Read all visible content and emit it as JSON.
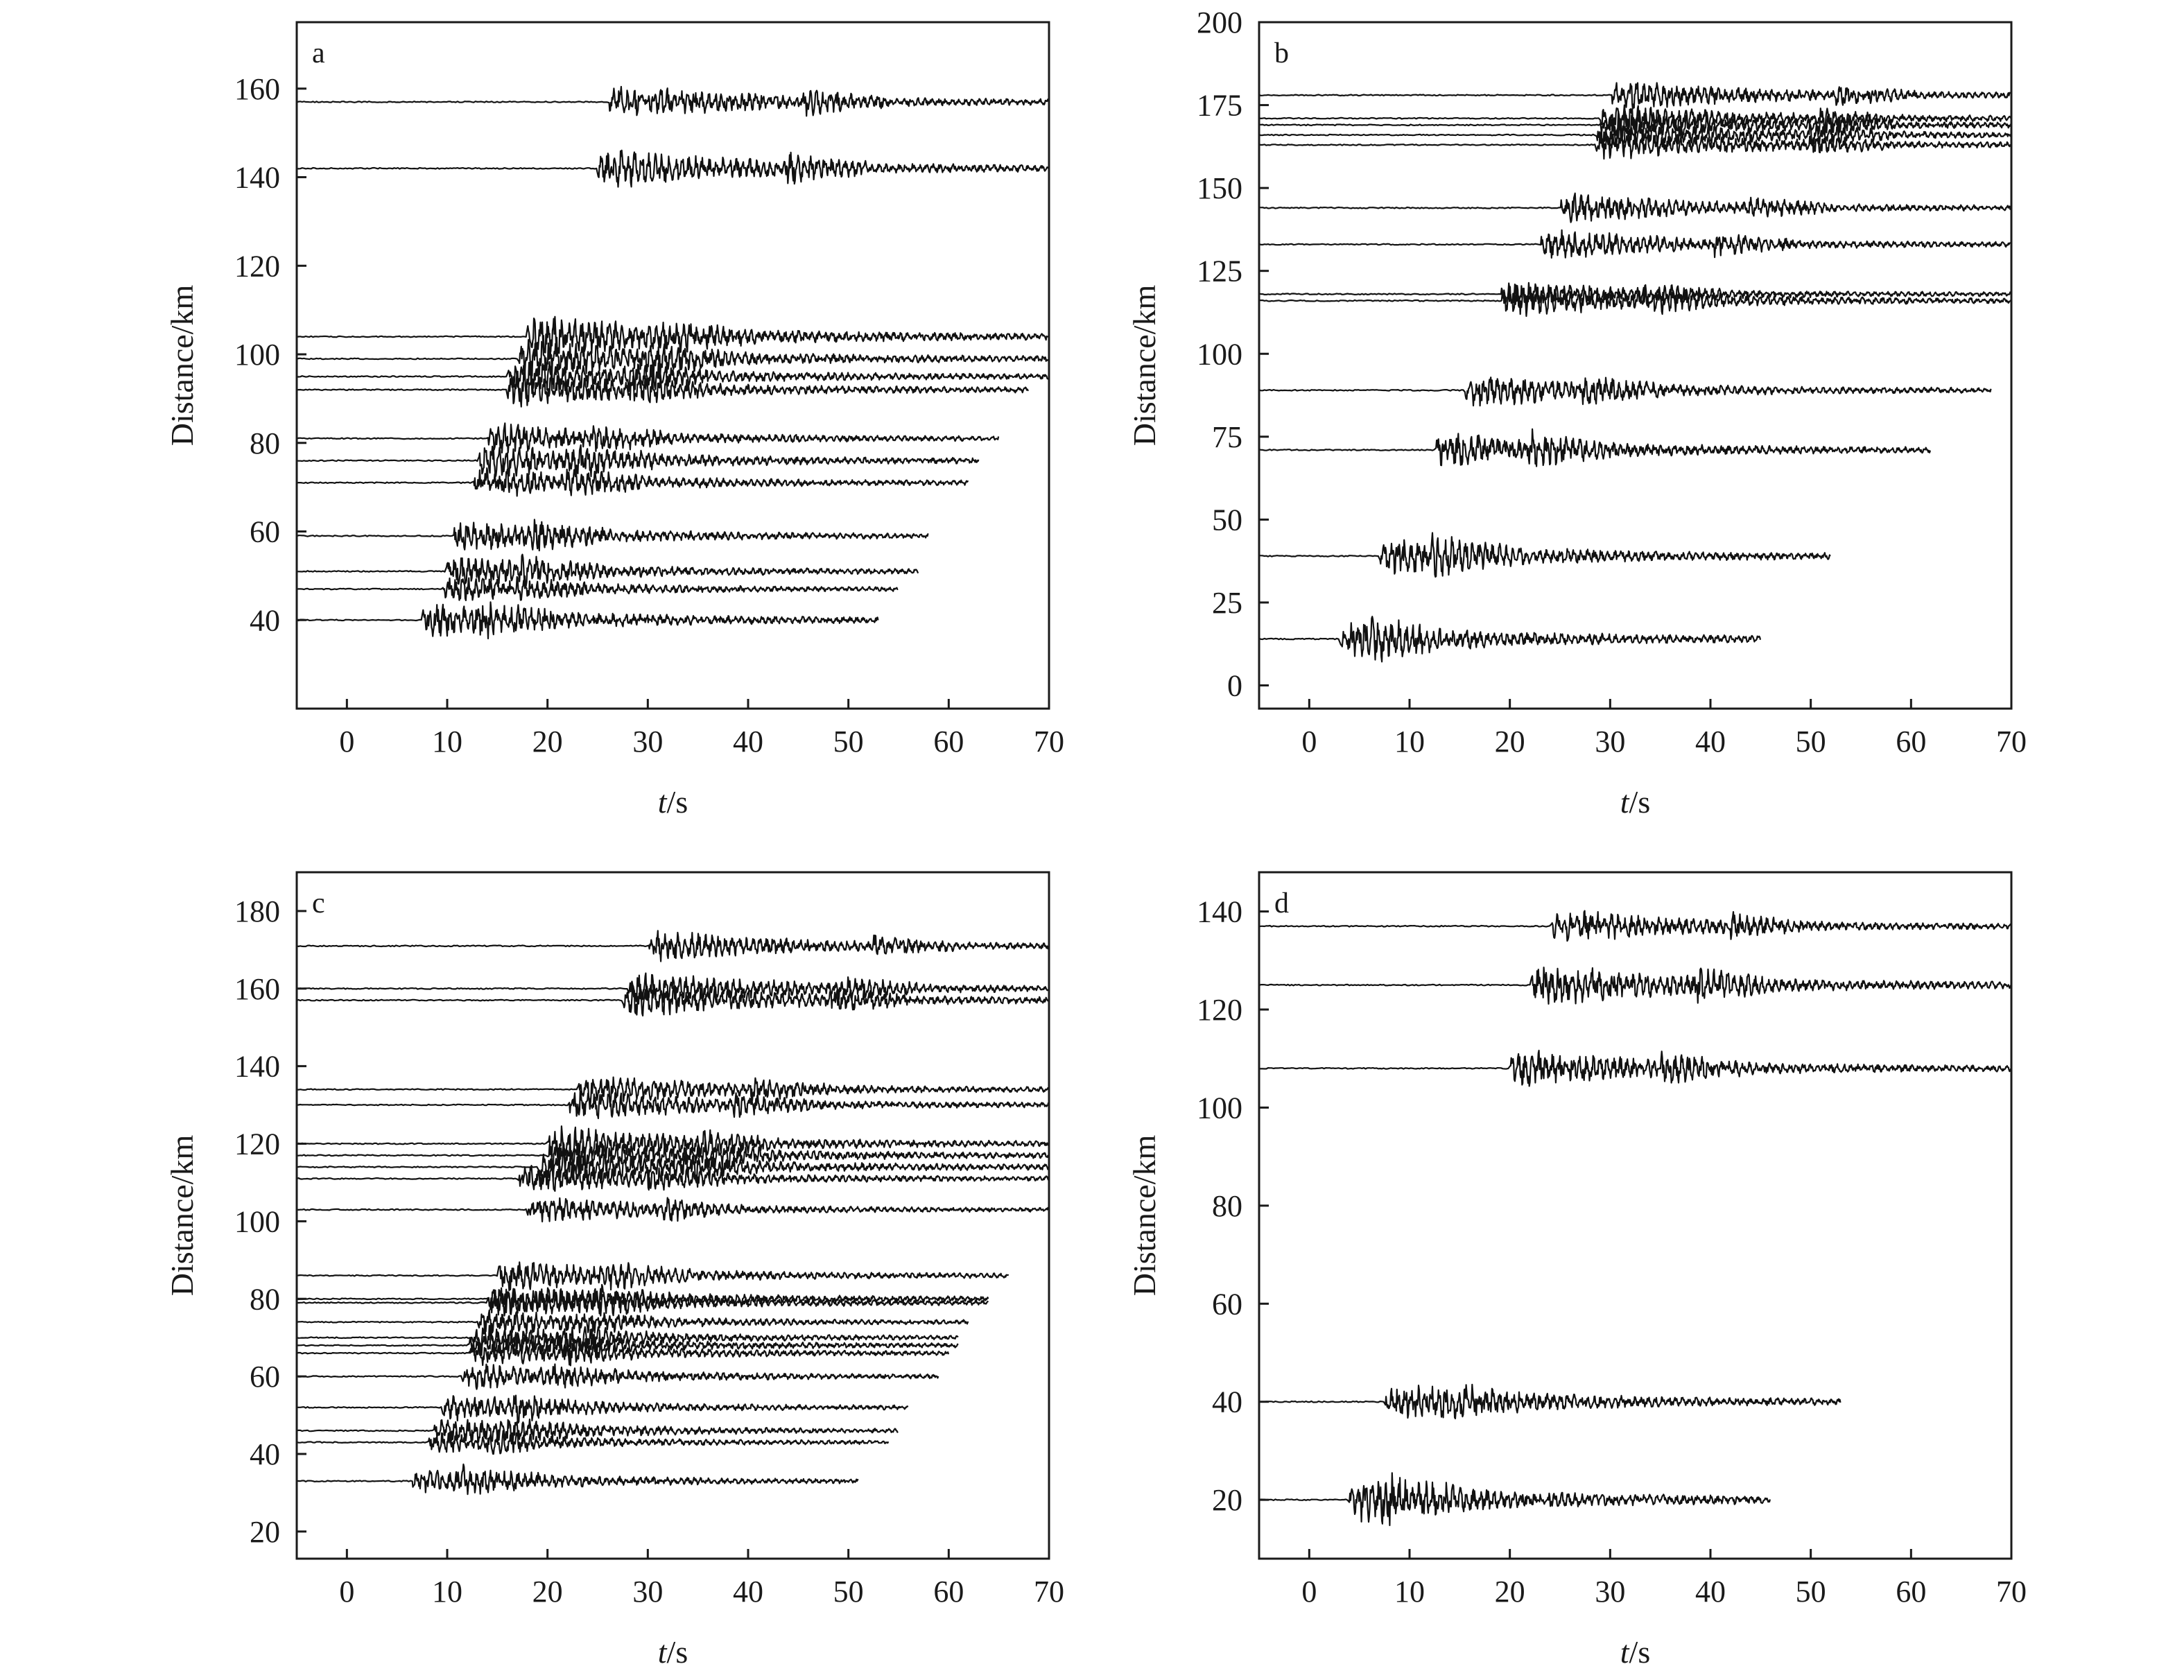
{
  "chart_data": [
    {
      "type": "line",
      "panel_label": "a",
      "xlabel_italic": "t",
      "xlabel_rest": "/s",
      "ylabel": "Distance/km",
      "xlim": [
        -5,
        70
      ],
      "ylim": [
        20,
        175
      ],
      "xticks": [
        0,
        10,
        20,
        30,
        40,
        50,
        60,
        70
      ],
      "yticks": [
        40,
        60,
        80,
        100,
        120,
        140,
        160
      ],
      "traces": [
        {
          "distance": 40,
          "onset": 7.5,
          "end": 53,
          "amp": 7
        },
        {
          "distance": 47,
          "onset": 9.5,
          "end": 55,
          "amp": 5
        },
        {
          "distance": 51,
          "onset": 9.8,
          "end": 57,
          "amp": 6
        },
        {
          "distance": 59,
          "onset": 10.5,
          "end": 58,
          "amp": 6
        },
        {
          "distance": 71,
          "onset": 12.5,
          "end": 62,
          "amp": 6
        },
        {
          "distance": 76,
          "onset": 13,
          "end": 63,
          "amp": 7
        },
        {
          "distance": 81,
          "onset": 14,
          "end": 65,
          "amp": 6
        },
        {
          "distance": 92,
          "onset": 16,
          "end": 68,
          "amp": 7
        },
        {
          "distance": 95,
          "onset": 16,
          "end": 70,
          "amp": 7
        },
        {
          "distance": 99,
          "onset": 17,
          "end": 70,
          "amp": 8
        },
        {
          "distance": 104,
          "onset": 18,
          "end": 70,
          "amp": 9
        },
        {
          "distance": 142,
          "onset": 25,
          "end": 70,
          "amp": 8
        },
        {
          "distance": 157,
          "onset": 26,
          "end": 70,
          "amp": 7
        }
      ]
    },
    {
      "type": "line",
      "panel_label": "b",
      "xlabel_italic": "t",
      "xlabel_rest": "/s",
      "ylabel": "Distance/km",
      "xlim": [
        -5,
        70
      ],
      "ylim": [
        -7,
        200
      ],
      "xticks": [
        0,
        10,
        20,
        30,
        40,
        50,
        60,
        70
      ],
      "yticks": [
        0,
        25,
        50,
        75,
        100,
        125,
        150,
        175,
        200
      ],
      "traces": [
        {
          "distance": 14,
          "onset": 3,
          "end": 45,
          "amp": 10
        },
        {
          "distance": 39,
          "onset": 7,
          "end": 52,
          "amp": 10
        },
        {
          "distance": 71,
          "onset": 12.5,
          "end": 62,
          "amp": 10
        },
        {
          "distance": 89,
          "onset": 15.5,
          "end": 68,
          "amp": 9
        },
        {
          "distance": 116,
          "onset": 19,
          "end": 70,
          "amp": 9
        },
        {
          "distance": 118,
          "onset": 19,
          "end": 70,
          "amp": 7
        },
        {
          "distance": 133,
          "onset": 23,
          "end": 70,
          "amp": 8
        },
        {
          "distance": 144,
          "onset": 25,
          "end": 70,
          "amp": 8
        },
        {
          "distance": 163,
          "onset": 28.5,
          "end": 70,
          "amp": 8
        },
        {
          "distance": 166,
          "onset": 28.5,
          "end": 70,
          "amp": 8
        },
        {
          "distance": 169,
          "onset": 29,
          "end": 70,
          "amp": 8
        },
        {
          "distance": 171,
          "onset": 29,
          "end": 70,
          "amp": 8
        },
        {
          "distance": 178,
          "onset": 30,
          "end": 70,
          "amp": 8
        }
      ]
    },
    {
      "type": "line",
      "panel_label": "c",
      "xlabel_italic": "t",
      "xlabel_rest": "/s",
      "ylabel": "Distance/km",
      "xlim": [
        -5,
        70
      ],
      "ylim": [
        13,
        190
      ],
      "xticks": [
        0,
        10,
        20,
        30,
        40,
        50,
        60,
        70
      ],
      "yticks": [
        20,
        40,
        60,
        80,
        100,
        120,
        140,
        160,
        180
      ],
      "traces": [
        {
          "distance": 33,
          "onset": 6.5,
          "end": 51,
          "amp": 6
        },
        {
          "distance": 43,
          "onset": 8,
          "end": 54,
          "amp": 5
        },
        {
          "distance": 46,
          "onset": 8.5,
          "end": 55,
          "amp": 6
        },
        {
          "distance": 52,
          "onset": 9.5,
          "end": 56,
          "amp": 6
        },
        {
          "distance": 60,
          "onset": 11.5,
          "end": 59,
          "amp": 6
        },
        {
          "distance": 66,
          "onset": 12,
          "end": 60,
          "amp": 6
        },
        {
          "distance": 68,
          "onset": 12,
          "end": 61,
          "amp": 6
        },
        {
          "distance": 70,
          "onset": 12.5,
          "end": 61,
          "amp": 6
        },
        {
          "distance": 74,
          "onset": 13,
          "end": 62,
          "amp": 6
        },
        {
          "distance": 79,
          "onset": 14,
          "end": 64,
          "amp": 7
        },
        {
          "distance": 80,
          "onset": 14,
          "end": 64,
          "amp": 7
        },
        {
          "distance": 86,
          "onset": 15,
          "end": 66,
          "amp": 7
        },
        {
          "distance": 103,
          "onset": 18,
          "end": 70,
          "amp": 6
        },
        {
          "distance": 111,
          "onset": 17,
          "end": 70,
          "amp": 7
        },
        {
          "distance": 114,
          "onset": 19,
          "end": 70,
          "amp": 8
        },
        {
          "distance": 117,
          "onset": 20,
          "end": 70,
          "amp": 8
        },
        {
          "distance": 120,
          "onset": 20,
          "end": 70,
          "amp": 8
        },
        {
          "distance": 130,
          "onset": 22,
          "end": 70,
          "amp": 7
        },
        {
          "distance": 134,
          "onset": 23,
          "end": 70,
          "amp": 7
        },
        {
          "distance": 157,
          "onset": 27.5,
          "end": 70,
          "amp": 8
        },
        {
          "distance": 160,
          "onset": 28,
          "end": 70,
          "amp": 8
        },
        {
          "distance": 171,
          "onset": 30,
          "end": 70,
          "amp": 7
        }
      ]
    },
    {
      "type": "line",
      "panel_label": "d",
      "xlabel_italic": "t",
      "xlabel_rest": "/s",
      "ylabel": "Distance/km",
      "xlim": [
        -5,
        70
      ],
      "ylim": [
        8,
        148
      ],
      "xticks": [
        0,
        10,
        20,
        30,
        40,
        50,
        60,
        70
      ],
      "yticks": [
        20,
        40,
        60,
        80,
        100,
        120,
        140
      ],
      "traces": [
        {
          "distance": 20,
          "onset": 4,
          "end": 46,
          "amp": 8
        },
        {
          "distance": 40,
          "onset": 7.5,
          "end": 53,
          "amp": 7
        },
        {
          "distance": 108,
          "onset": 20,
          "end": 70,
          "amp": 7
        },
        {
          "distance": 125,
          "onset": 22,
          "end": 70,
          "amp": 8
        },
        {
          "distance": 137,
          "onset": 24,
          "end": 70,
          "amp": 6
        }
      ]
    }
  ]
}
